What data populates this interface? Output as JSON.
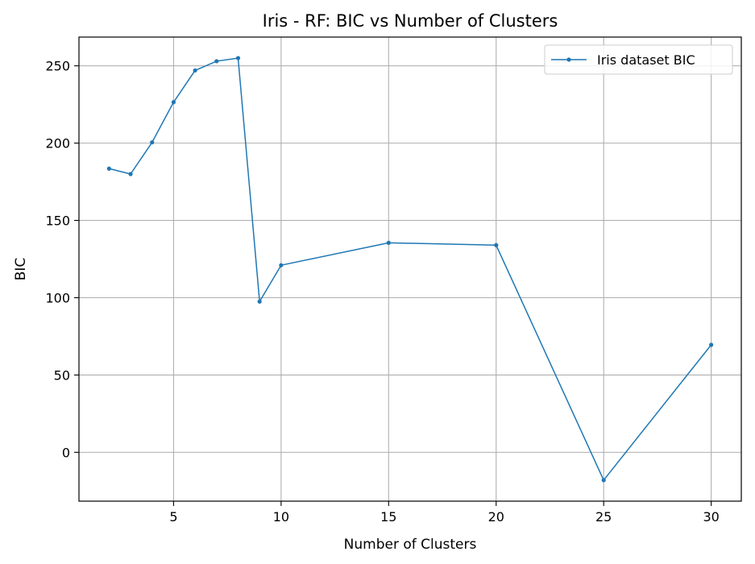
{
  "chart_data": {
    "type": "line",
    "title": "Iris - RF: BIC vs Number of Clusters",
    "xlabel": "Number of Clusters",
    "ylabel": "BIC",
    "xlim": [
      0.6,
      31.4
    ],
    "ylim": [
      -31.6,
      268.6
    ],
    "xticks": [
      5,
      10,
      15,
      20,
      25,
      30
    ],
    "yticks": [
      0,
      50,
      100,
      150,
      200,
      250
    ],
    "grid": true,
    "legend_position": "top-right",
    "color": "#1f77b4",
    "series": [
      {
        "name": "Iris dataset BIC",
        "x": [
          2,
          3,
          4,
          5,
          6,
          7,
          8,
          9,
          10,
          15,
          20,
          25,
          30
        ],
        "y": [
          183.5,
          180,
          200.5,
          226.5,
          247,
          253,
          255,
          97.5,
          121,
          135.5,
          134,
          -18,
          69.5
        ]
      }
    ]
  }
}
